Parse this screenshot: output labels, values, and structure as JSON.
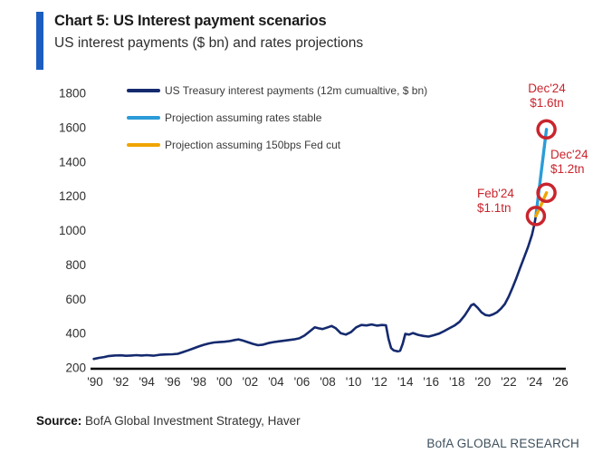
{
  "header": {
    "title": "Chart 5: US Interest payment scenarios",
    "subtitle": "US interest payments ($ bn) and rates projections",
    "accent_color": "#1c5dc0"
  },
  "legend": [
    {
      "label": "US Treasury interest payments (12m cumualtive, $ bn)",
      "color": "#152a6e"
    },
    {
      "label": "Projection assuming rates stable",
      "color": "#2b9cd8"
    },
    {
      "label": "Projection assuming 150bps Fed cut",
      "color": "#f0a500"
    }
  ],
  "chart_data": {
    "type": "line",
    "title": "US interest payments ($ bn) and rates projections",
    "xlabel": "",
    "ylabel": "",
    "ylim": [
      200,
      1800
    ],
    "xlim": [
      1989.6,
      2026.5
    ],
    "grid": false,
    "legend_position": "top-left",
    "yticks": [
      200,
      400,
      600,
      800,
      1000,
      1200,
      1400,
      1600,
      1800
    ],
    "xtick_years": [
      1990,
      1992,
      1994,
      1996,
      1998,
      2000,
      2002,
      2004,
      2006,
      2008,
      2010,
      2012,
      2014,
      2016,
      2018,
      2020,
      2022,
      2024,
      2026
    ],
    "xtick_labels": [
      "'90",
      "'92",
      "'94",
      "'96",
      "'98",
      "'00",
      "'02",
      "'04",
      "'06",
      "'08",
      "'10",
      "'12",
      "'14",
      "'16",
      "'18",
      "'20",
      "'22",
      "'24",
      "'26"
    ],
    "axis_color": "#000000",
    "series": [
      {
        "name": "US Treasury interest payments (12m cumualtive, $ bn)",
        "color": "#152a6e",
        "points": [
          [
            1989.9,
            252
          ],
          [
            1990.3,
            258
          ],
          [
            1990.7,
            263
          ],
          [
            1991.0,
            268
          ],
          [
            1991.5,
            272
          ],
          [
            1992.0,
            273
          ],
          [
            1992.4,
            270
          ],
          [
            1992.8,
            272
          ],
          [
            1993.2,
            274
          ],
          [
            1993.6,
            272
          ],
          [
            1994.0,
            274
          ],
          [
            1994.5,
            271
          ],
          [
            1995.0,
            276
          ],
          [
            1995.5,
            278
          ],
          [
            1996.0,
            279
          ],
          [
            1996.4,
            282
          ],
          [
            1996.8,
            292
          ],
          [
            1997.2,
            302
          ],
          [
            1997.6,
            313
          ],
          [
            1998.0,
            324
          ],
          [
            1998.4,
            334
          ],
          [
            1998.8,
            342
          ],
          [
            1999.2,
            348
          ],
          [
            1999.6,
            350
          ],
          [
            2000.0,
            352
          ],
          [
            2000.4,
            356
          ],
          [
            2000.8,
            362
          ],
          [
            2001.1,
            366
          ],
          [
            2001.4,
            360
          ],
          [
            2001.8,
            350
          ],
          [
            2002.2,
            340
          ],
          [
            2002.6,
            332
          ],
          [
            2003.0,
            335
          ],
          [
            2003.4,
            344
          ],
          [
            2003.8,
            350
          ],
          [
            2004.2,
            354
          ],
          [
            2004.6,
            358
          ],
          [
            2005.0,
            362
          ],
          [
            2005.4,
            366
          ],
          [
            2005.8,
            372
          ],
          [
            2006.2,
            388
          ],
          [
            2006.6,
            412
          ],
          [
            2007.0,
            436
          ],
          [
            2007.3,
            430
          ],
          [
            2007.6,
            426
          ],
          [
            2008.0,
            436
          ],
          [
            2008.3,
            444
          ],
          [
            2008.6,
            432
          ],
          [
            2009.0,
            402
          ],
          [
            2009.4,
            394
          ],
          [
            2009.8,
            408
          ],
          [
            2010.2,
            436
          ],
          [
            2010.6,
            450
          ],
          [
            2011.0,
            447
          ],
          [
            2011.4,
            453
          ],
          [
            2011.8,
            446
          ],
          [
            2012.2,
            450
          ],
          [
            2012.5,
            448
          ],
          [
            2012.7,
            370
          ],
          [
            2012.9,
            315
          ],
          [
            2013.1,
            302
          ],
          [
            2013.4,
            296
          ],
          [
            2013.6,
            300
          ],
          [
            2013.8,
            340
          ],
          [
            2014.0,
            398
          ],
          [
            2014.3,
            394
          ],
          [
            2014.6,
            403
          ],
          [
            2015.0,
            392
          ],
          [
            2015.4,
            386
          ],
          [
            2015.8,
            382
          ],
          [
            2016.2,
            390
          ],
          [
            2016.6,
            399
          ],
          [
            2017.0,
            414
          ],
          [
            2017.4,
            430
          ],
          [
            2017.8,
            446
          ],
          [
            2018.2,
            468
          ],
          [
            2018.6,
            505
          ],
          [
            2018.9,
            540
          ],
          [
            2019.1,
            565
          ],
          [
            2019.3,
            572
          ],
          [
            2019.6,
            550
          ],
          [
            2019.9,
            523
          ],
          [
            2020.2,
            508
          ],
          [
            2020.5,
            504
          ],
          [
            2020.8,
            512
          ],
          [
            2021.1,
            524
          ],
          [
            2021.4,
            545
          ],
          [
            2021.7,
            572
          ],
          [
            2022.0,
            615
          ],
          [
            2022.3,
            668
          ],
          [
            2022.6,
            725
          ],
          [
            2022.9,
            785
          ],
          [
            2023.2,
            845
          ],
          [
            2023.5,
            905
          ],
          [
            2023.8,
            975
          ],
          [
            2024.0,
            1040
          ],
          [
            2024.1,
            1085
          ]
        ]
      },
      {
        "name": "Projection assuming rates stable",
        "color": "#2b9cd8",
        "points": [
          [
            2024.1,
            1085
          ],
          [
            2024.92,
            1590
          ]
        ]
      },
      {
        "name": "Projection assuming 150bps Fed cut",
        "color": "#f0a500",
        "points": [
          [
            2024.1,
            1085
          ],
          [
            2024.45,
            1140
          ],
          [
            2024.92,
            1220
          ]
        ]
      }
    ],
    "markers": {
      "color": "#c9252d",
      "points": [
        [
          2024.1,
          1085
        ],
        [
          2024.92,
          1220
        ],
        [
          2024.92,
          1590
        ]
      ]
    },
    "annotation_color": "#c9252d",
    "annotations": [
      {
        "target": "rates-stable-endpoint",
        "label_lines": [
          "Dec'24",
          "$1.6tn"
        ]
      },
      {
        "target": "fed-cut-endpoint",
        "label_lines": [
          "Dec'24",
          "$1.2tn"
        ]
      },
      {
        "target": "actual-endpoint",
        "label_lines": [
          "Feb'24",
          "$1.1tn"
        ]
      }
    ]
  },
  "footer": {
    "source_label": "Source:",
    "source_text": " BofA Global Investment Strategy, Haver",
    "brand": "BofA GLOBAL RESEARCH",
    "brand_color": "#3d4f5c"
  }
}
